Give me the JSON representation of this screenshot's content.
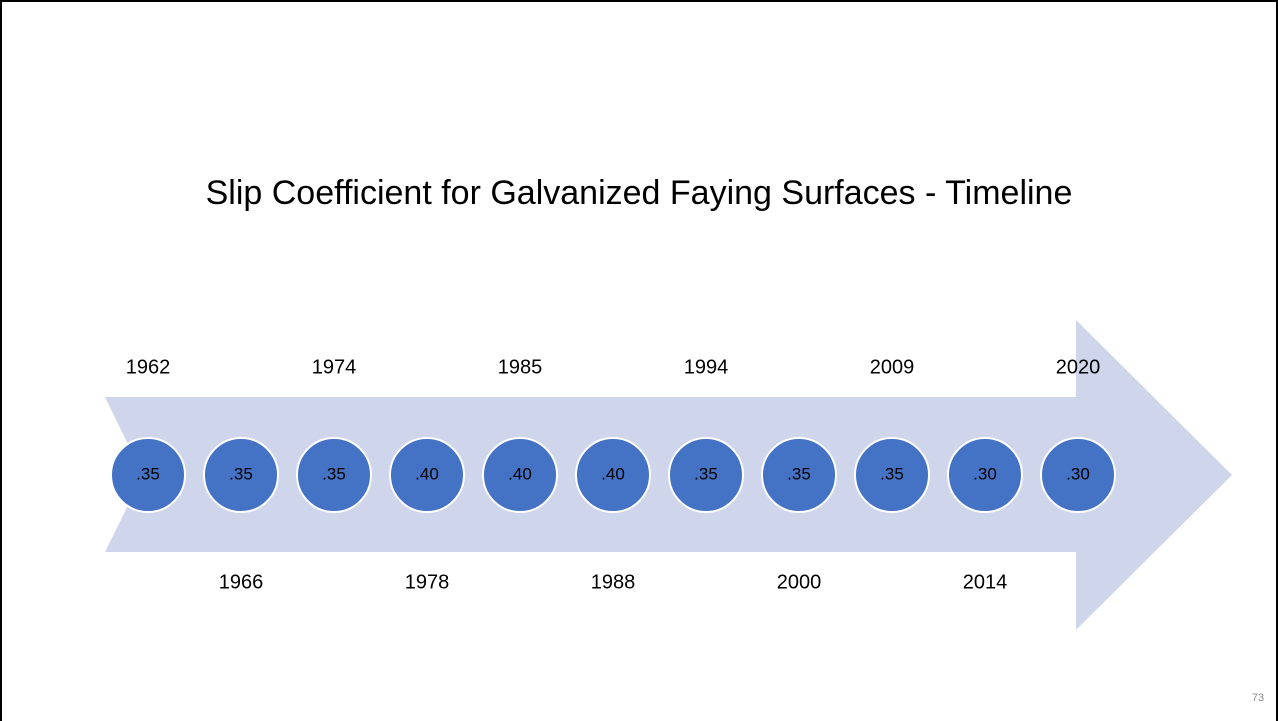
{
  "title": "Slip Coefficient for Galvanized Faying Surfaces - Timeline",
  "events": [
    {
      "year": "1962",
      "value": ".35"
    },
    {
      "year": "1966",
      "value": ".35"
    },
    {
      "year": "1974",
      "value": ".35"
    },
    {
      "year": "1978",
      "value": ".40"
    },
    {
      "year": "1985",
      "value": ".40"
    },
    {
      "year": "1988",
      "value": ".40"
    },
    {
      "year": "1994",
      "value": ".35"
    },
    {
      "year": "2000",
      "value": ".35"
    },
    {
      "year": "2009",
      "value": ".35"
    },
    {
      "year": "2014",
      "value": ".30"
    },
    {
      "year": "2020",
      "value": ".30"
    }
  ],
  "page_number": "73"
}
